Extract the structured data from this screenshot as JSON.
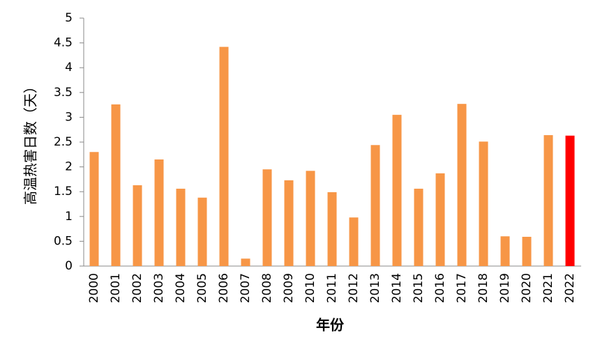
{
  "chart_data": {
    "type": "bar",
    "y_label": "高温热害日数（天）",
    "x_label": "年份",
    "categories": [
      "2000",
      "2001",
      "2002",
      "2003",
      "2004",
      "2005",
      "2006",
      "2007",
      "2008",
      "2009",
      "2010",
      "2011",
      "2012",
      "2013",
      "2014",
      "2015",
      "2016",
      "2017",
      "2018",
      "2019",
      "2020",
      "2021",
      "2022"
    ],
    "values": [
      2.3,
      3.26,
      1.63,
      2.15,
      1.56,
      1.38,
      4.42,
      0.15,
      1.95,
      1.73,
      1.92,
      1.49,
      0.98,
      2.44,
      3.05,
      1.56,
      1.87,
      3.27,
      2.51,
      0.6,
      0.59,
      2.64,
      2.63
    ],
    "colors": [
      "#f79646",
      "#f79646",
      "#f79646",
      "#f79646",
      "#f79646",
      "#f79646",
      "#f79646",
      "#f79646",
      "#f79646",
      "#f79646",
      "#f79646",
      "#f79646",
      "#f79646",
      "#f79646",
      "#f79646",
      "#f79646",
      "#f79646",
      "#f79646",
      "#f79646",
      "#f79646",
      "#f79646",
      "#f79646",
      "#ff0000"
    ],
    "ylim": [
      0,
      5
    ],
    "yticks": [
      0,
      0.5,
      1,
      1.5,
      2,
      2.5,
      3,
      3.5,
      4,
      4.5,
      5
    ],
    "grid": false
  }
}
